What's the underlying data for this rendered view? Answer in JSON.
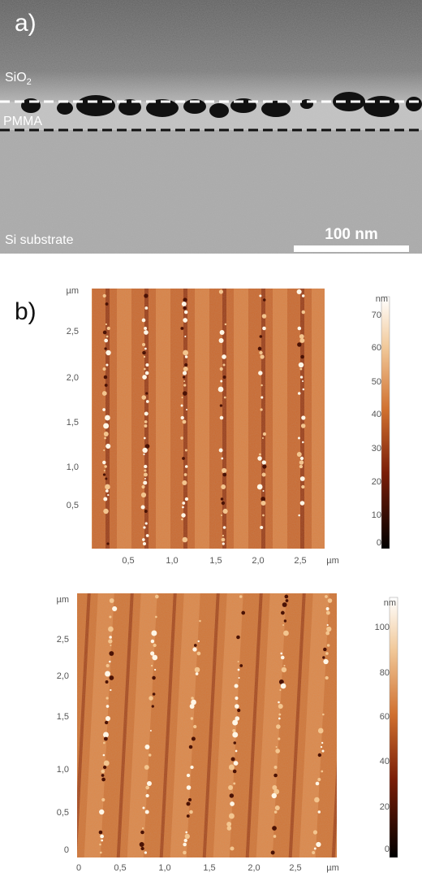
{
  "panel_a": {
    "label": "a)",
    "layer_top": {
      "text": "SiO",
      "subscript": "2"
    },
    "layer_middle": "PMMA",
    "layer_bottom": "Si substrate",
    "scale_bar": "100 nm"
  },
  "panel_b": {
    "label": "b)",
    "images": [
      {
        "y_unit": "µm",
        "y_ticks": [
          "2,5",
          "2,0",
          "1,5",
          "1,0",
          "0,5"
        ],
        "x_ticks": [
          "0,5",
          "1,0",
          "1,5",
          "2,0",
          "2,5"
        ],
        "x_unit": "µm",
        "colorbar_unit": "nm",
        "colorbar_ticks": [
          70,
          60,
          50,
          40,
          30,
          20,
          10,
          0
        ]
      },
      {
        "y_unit": "µm",
        "y_ticks": [
          "2,5",
          "2,0",
          "1,5",
          "1,0",
          "0,5",
          "0"
        ],
        "x_ticks": [
          "0",
          "0,5",
          "1,0",
          "1,5",
          "2,0",
          "2,5"
        ],
        "x_unit": "µm",
        "colorbar_unit": "nm",
        "colorbar_ticks": [
          100,
          80,
          60,
          40,
          20,
          0
        ]
      }
    ]
  }
}
